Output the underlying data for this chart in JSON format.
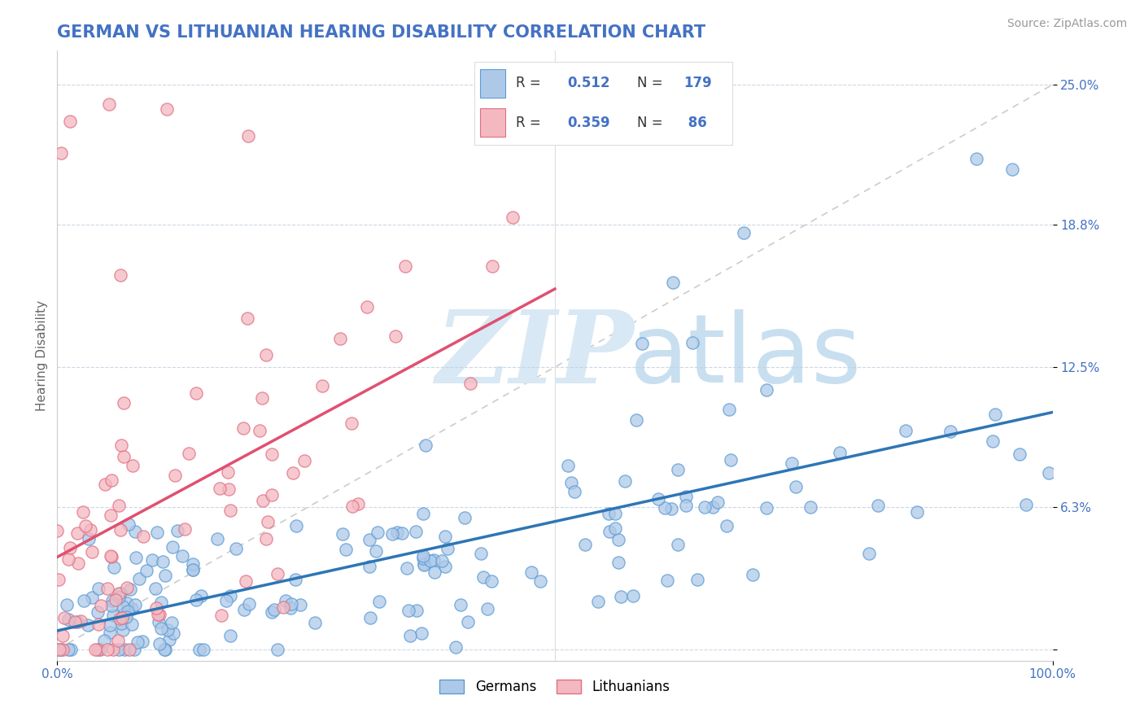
{
  "title": "GERMAN VS LITHUANIAN HEARING DISABILITY CORRELATION CHART",
  "source_text": "Source: ZipAtlas.com",
  "ylabel": "Hearing Disability",
  "x_min": 0.0,
  "x_max": 1.0,
  "y_min": -0.005,
  "y_max": 0.265,
  "y_ticks": [
    0.0,
    0.063,
    0.125,
    0.188,
    0.25
  ],
  "y_tick_labels": [
    "",
    "6.3%",
    "12.5%",
    "18.8%",
    "25.0%"
  ],
  "x_tick_labels": [
    "0.0%",
    "100.0%"
  ],
  "german_R": 0.512,
  "german_N": 179,
  "lithuanian_R": 0.359,
  "lithuanian_N": 86,
  "blue_scatter_color": "#aec9e8",
  "blue_scatter_edge": "#5b9bd5",
  "pink_scatter_color": "#f4b8c1",
  "pink_scatter_edge": "#e07080",
  "blue_line_color": "#2e75b6",
  "pink_line_color": "#e05070",
  "diag_line_color": "#cccccc",
  "watermark_zip_color": "#d8e8f4",
  "watermark_atlas_color": "#c8dff0",
  "grid_color": "#c0cfe0",
  "background_color": "#ffffff",
  "title_color": "#4472c4",
  "axis_color": "#4472c4",
  "legend_text_color": "#4472c4",
  "legend_blue_face": "#aec9e8",
  "legend_blue_edge": "#5b9bd5",
  "legend_pink_face": "#f4b8c1",
  "legend_pink_edge": "#e07080",
  "title_fontsize": 15,
  "axis_label_fontsize": 11,
  "tick_fontsize": 11,
  "source_fontsize": 10
}
